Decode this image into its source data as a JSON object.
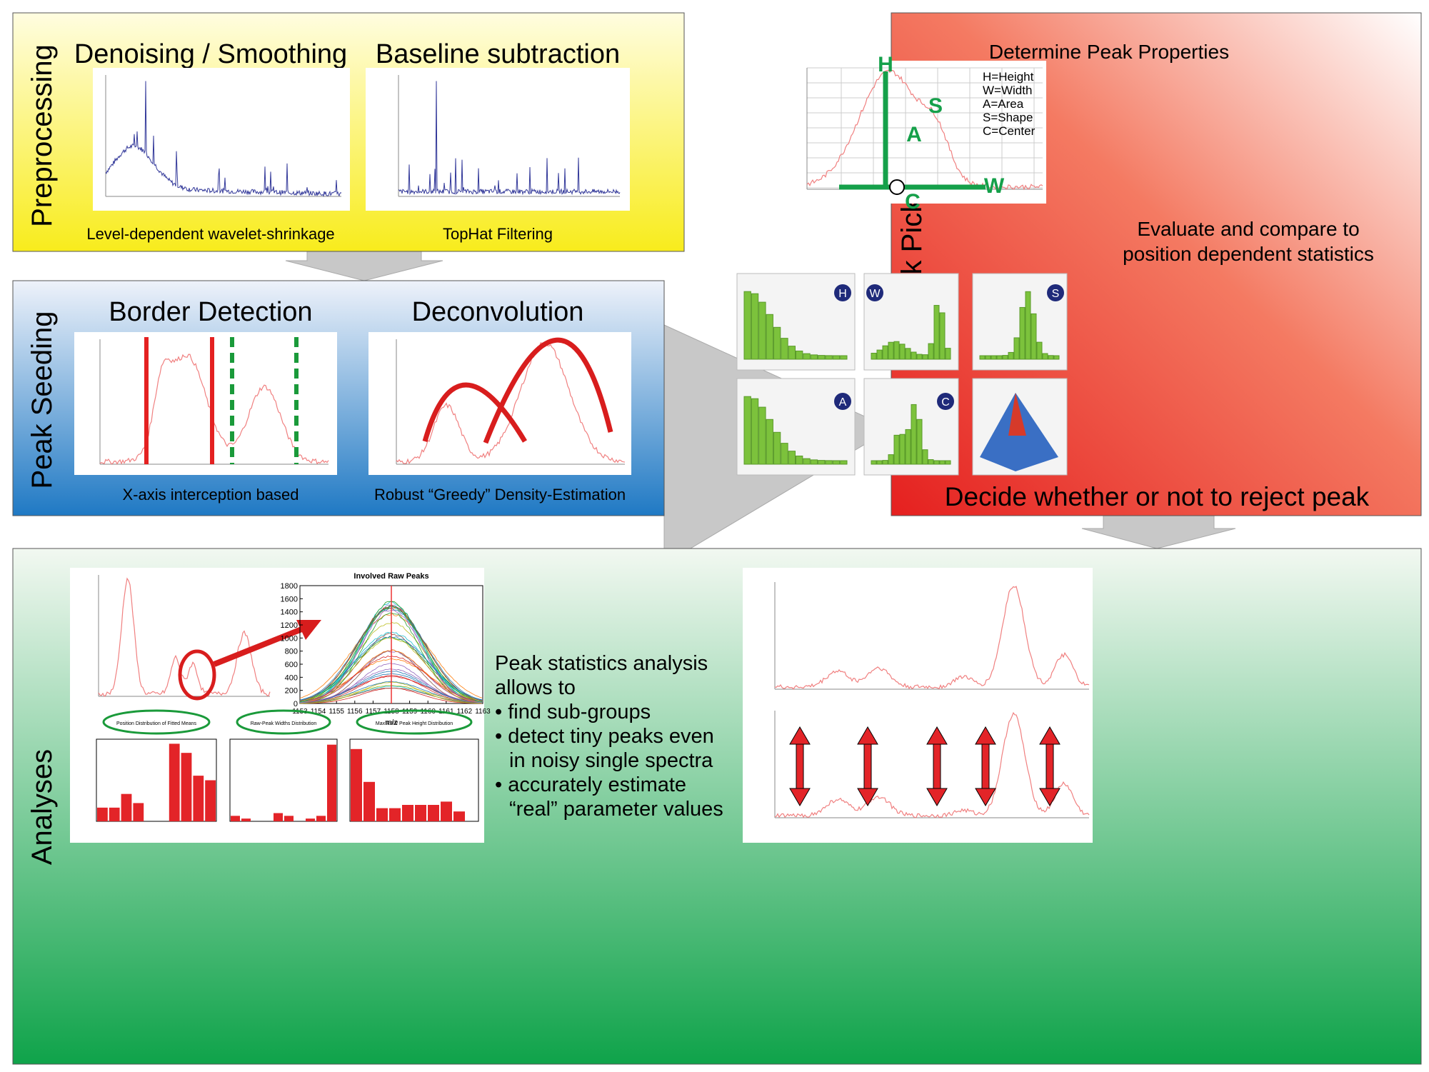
{
  "preprocessing": {
    "label": "Preprocessing",
    "steps": [
      {
        "title": "Denoising / Smoothing",
        "caption": "Level-dependent wavelet-shrinkage"
      },
      {
        "title": "Baseline subtraction",
        "caption": "TopHat Filtering"
      }
    ]
  },
  "seeding": {
    "label": "Peak Seeding",
    "steps": [
      {
        "title": "Border Detection",
        "caption": "X-axis interception based"
      },
      {
        "title": "Deconvolution",
        "caption": "Robust “Greedy” Density-Estimation"
      }
    ]
  },
  "picking": {
    "label": "Peak Picking",
    "title": "Determine Peak Properties",
    "markers": [
      "H",
      "S",
      "A",
      "W",
      "C"
    ],
    "legend": [
      "H=Height",
      "W=Width",
      "A=Area",
      "S=Shape",
      "C=Center"
    ],
    "evaluate": [
      "Evaluate and compare to",
      "position dependent statistics"
    ],
    "badges": [
      "H",
      "W",
      "S",
      "A",
      "C"
    ],
    "decision": "Decide whether or not to reject peak"
  },
  "analyses": {
    "label": "Analyses",
    "raw_peaks": {
      "title": "Involved Raw Peaks",
      "xlabel": "m/z",
      "xlim": [
        1153,
        1163
      ],
      "xticks": [
        1153,
        1154,
        1155,
        1156,
        1157,
        1158,
        1159,
        1160,
        1161,
        1162,
        1163
      ],
      "ylim": [
        0,
        1800
      ],
      "yticks": [
        0,
        200,
        400,
        600,
        800,
        1000,
        1200,
        1400,
        1600,
        1800
      ]
    },
    "histograms": [
      {
        "title": "Position Distribution of Fitted Means",
        "ylim": [
          0,
          18
        ],
        "values": [
          3,
          3,
          6,
          4,
          0,
          0,
          17,
          15,
          10,
          9
        ]
      },
      {
        "title": "Raw-Peak Widths Distribution",
        "ylim": [
          0,
          30
        ],
        "values": [
          2,
          1,
          0,
          0,
          3,
          2,
          0,
          1,
          2,
          28
        ]
      },
      {
        "title": "Max RAW Peak Height Distribution",
        "ylim": [
          0,
          25
        ],
        "values": [
          22,
          12,
          4,
          4,
          5,
          5,
          5,
          6,
          3,
          0
        ]
      }
    ],
    "text": [
      "Peak statistics analysis",
      "allows to",
      "• find sub-groups",
      "• detect tiny peaks even",
      "in noisy single spectra",
      "• accurately estimate",
      "“real” parameter values"
    ]
  }
}
